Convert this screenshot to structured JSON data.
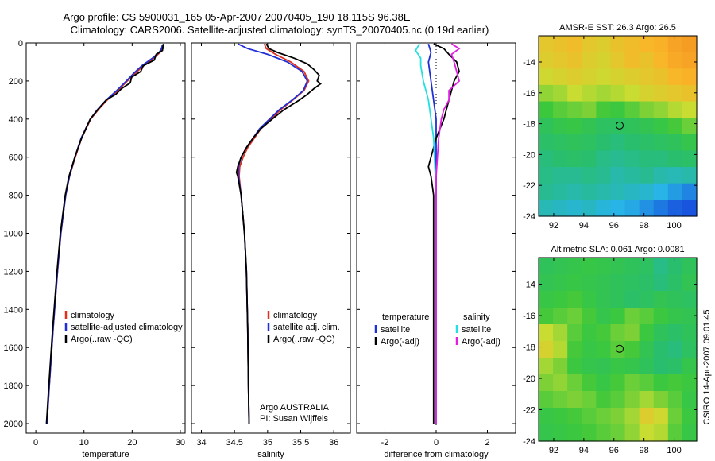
{
  "title_line1": "Argo profile: CS 5900031_165 05-Apr-2007 20070405_190 18.115S 96.38E",
  "title_line2": "Climatology: CARS2006. Satellite-adjusted climatology: synTS_20070405.nc (0.19d earlier)",
  "footer_stamp": "CSIRO 14-Apr-2007 09:01:45",
  "colors": {
    "climatology": "#e0301e",
    "satellite": "#1f2fd6",
    "argo": "#000000",
    "sat_diff_cyan": "#22e0e0",
    "argo_diff_magenta": "#e020e0"
  },
  "chart_data": [
    {
      "type": "line",
      "xlabel": "temperature",
      "ylim": [
        0,
        2050
      ],
      "xlim": [
        -2,
        31
      ],
      "yticks": [
        0,
        200,
        400,
        600,
        800,
        1000,
        1200,
        1400,
        1600,
        1800,
        2000
      ],
      "ytick_labels": [
        "0",
        "200",
        "400",
        "600",
        "800",
        "1000",
        "1200",
        "1400",
        "1600",
        "1800",
        "2000"
      ],
      "xticks": [
        0,
        10,
        20,
        30
      ],
      "xtick_labels": [
        "0",
        "10",
        "20",
        "30"
      ],
      "legend": [
        "climatology",
        "satellite-adjusted climatology",
        "Argo(..raw -QC)"
      ],
      "series": [
        {
          "name": "climatology",
          "depth": [
            10,
            30,
            50,
            80,
            120,
            160,
            200,
            250,
            300,
            350,
            400,
            500,
            600,
            700,
            800,
            1000,
            1200,
            1500,
            1800,
            2000
          ],
          "values": [
            26.6,
            26.4,
            25.8,
            24.5,
            22.4,
            20.6,
            19.0,
            17.0,
            14.8,
            13.0,
            11.4,
            9.5,
            8.2,
            7.0,
            6.2,
            5.2,
            4.5,
            3.6,
            2.8,
            2.3
          ]
        },
        {
          "name": "satellite-adjusted climatology",
          "depth": [
            10,
            30,
            50,
            80,
            120,
            160,
            200,
            250,
            300,
            350,
            400,
            500,
            600,
            700,
            800,
            1000,
            1200,
            1500,
            1800,
            2000
          ],
          "values": [
            26.3,
            26.1,
            25.6,
            24.2,
            22.0,
            20.3,
            18.8,
            16.8,
            14.6,
            12.8,
            11.3,
            9.4,
            8.1,
            7.0,
            6.2,
            5.2,
            4.5,
            3.6,
            2.8,
            2.3
          ]
        },
        {
          "name": "Argo(..raw -QC)",
          "depth": [
            5,
            20,
            40,
            60,
            90,
            120,
            150,
            180,
            210,
            240,
            270,
            300,
            350,
            400,
            450,
            500,
            600,
            700,
            800,
            1000,
            1200,
            1500,
            1800,
            2000
          ],
          "values": [
            26.5,
            26.4,
            26.3,
            25.0,
            24.6,
            22.3,
            21.8,
            19.9,
            19.6,
            17.8,
            16.6,
            14.6,
            12.9,
            11.3,
            10.4,
            9.5,
            8.1,
            6.9,
            6.1,
            5.1,
            4.4,
            3.5,
            2.7,
            2.2
          ]
        }
      ]
    },
    {
      "type": "line",
      "xlabel": "salinity",
      "ylim": [
        0,
        2050
      ],
      "xlim": [
        33.85,
        36.25
      ],
      "xticks": [
        34,
        34.5,
        35,
        35.5,
        36
      ],
      "xtick_labels": [
        "34",
        "34.5",
        "35",
        "35.5",
        "36"
      ],
      "legend": [
        "climatology",
        "satellite adj. clim.",
        "Argo(..raw -QC)"
      ],
      "annotations": [
        "Argo AUSTRALIA",
        "PI: Susan Wijffels"
      ],
      "series": [
        {
          "name": "climatology",
          "depth": [
            5,
            30,
            60,
            100,
            150,
            200,
            250,
            300,
            350,
            400,
            450,
            500,
            550,
            600,
            650,
            700,
            800,
            1000,
            1200,
            1500,
            1800,
            2000
          ],
          "values": [
            34.95,
            34.98,
            35.12,
            35.35,
            35.55,
            35.62,
            35.55,
            35.38,
            35.2,
            35.05,
            34.9,
            34.8,
            34.7,
            34.63,
            34.58,
            34.57,
            34.6,
            34.65,
            34.68,
            34.7,
            34.71,
            34.72
          ]
        },
        {
          "name": "satellite adj. clim.",
          "depth": [
            5,
            30,
            60,
            100,
            150,
            200,
            250,
            300,
            350,
            400,
            450,
            500,
            550,
            600,
            650,
            700,
            800,
            1000,
            1200,
            1500,
            1800,
            2000
          ],
          "values": [
            34.55,
            34.7,
            35.0,
            35.3,
            35.52,
            35.6,
            35.54,
            35.37,
            35.18,
            35.03,
            34.88,
            34.78,
            34.68,
            34.6,
            34.56,
            34.56,
            34.6,
            34.65,
            34.68,
            34.7,
            34.71,
            34.72
          ]
        },
        {
          "name": "Argo(..raw -QC)",
          "depth": [
            5,
            30,
            50,
            80,
            110,
            140,
            170,
            200,
            215,
            240,
            270,
            300,
            350,
            400,
            450,
            500,
            550,
            600,
            650,
            680,
            700,
            800,
            1000,
            1200,
            1500,
            1800,
            2000
          ],
          "values": [
            34.98,
            35.02,
            35.15,
            35.4,
            35.6,
            35.7,
            35.78,
            35.75,
            35.8,
            35.7,
            35.6,
            35.48,
            35.25,
            35.07,
            34.9,
            34.78,
            34.68,
            34.6,
            34.55,
            34.53,
            34.55,
            34.6,
            34.65,
            34.68,
            34.7,
            34.71,
            34.72
          ]
        }
      ]
    },
    {
      "type": "line",
      "xlabel": "difference from climatology",
      "ylim": [
        0,
        2050
      ],
      "xlim": [
        -3.1,
        3.1
      ],
      "xticks": [
        -2,
        0,
        2
      ],
      "xtick_labels": [
        "-2",
        "0",
        "2"
      ],
      "legend_headers": [
        "temperature",
        "salinity"
      ],
      "legend": [
        "satellite",
        "Argo(-adj)",
        "satellite",
        "Argo(-adj)"
      ],
      "series": [
        {
          "name": "temperature satellite",
          "depth": [
            5,
            50,
            100,
            200,
            400,
            700,
            1000,
            1500,
            2000
          ],
          "values": [
            -0.3,
            -0.2,
            -0.3,
            -0.2,
            0.0,
            0.0,
            0.0,
            0.0,
            0.0
          ]
        },
        {
          "name": "temperature Argo(-adj)",
          "depth": [
            5,
            30,
            60,
            100,
            150,
            200,
            300,
            400,
            500,
            600,
            650,
            700,
            800,
            1000,
            1500,
            2000
          ],
          "values": [
            -0.1,
            0.3,
            0.5,
            0.8,
            0.9,
            0.7,
            0.5,
            0.3,
            0.0,
            -0.2,
            -0.3,
            -0.2,
            -0.1,
            -0.1,
            -0.1,
            -0.1
          ]
        },
        {
          "name": "salinity satellite",
          "depth": [
            5,
            40,
            80,
            120,
            200,
            300,
            500,
            800,
            1200,
            2000
          ],
          "values": [
            -0.65,
            -0.8,
            -0.6,
            -0.6,
            -0.5,
            -0.3,
            -0.1,
            0.0,
            0.0,
            0.0
          ]
        },
        {
          "name": "salinity Argo(-adj)",
          "depth": [
            5,
            30,
            60,
            100,
            150,
            200,
            250,
            300,
            350,
            400,
            500,
            600,
            700,
            800,
            1000,
            1500,
            2000
          ],
          "values": [
            0.6,
            0.9,
            0.6,
            0.7,
            0.8,
            0.9,
            0.5,
            0.5,
            0.3,
            0.2,
            0.1,
            0.05,
            0.0,
            0.0,
            0.0,
            0.0,
            0.0
          ]
        }
      ]
    },
    {
      "type": "heatmap",
      "title": "AMSR-E SST: 26.3 Argo: 26.5",
      "xlim": [
        91,
        101.5
      ],
      "ylim": [
        -24,
        -12.3
      ],
      "xticks": [
        92,
        94,
        96,
        98,
        100
      ],
      "xtick_labels": [
        "92",
        "94",
        "96",
        "98",
        "100"
      ],
      "yticks": [
        -14,
        -16,
        -18,
        -20,
        -22,
        -24
      ],
      "ytick_labels": [
        "-14",
        "-16",
        "-18",
        "-20",
        "-22",
        "-24"
      ],
      "marker": {
        "lon": 96.38,
        "lat": -18.115
      },
      "grid": [
        [
          0.78,
          0.8,
          0.82,
          0.78,
          0.76,
          0.8,
          0.82,
          0.84,
          0.86,
          0.9,
          0.92
        ],
        [
          0.76,
          0.78,
          0.8,
          0.76,
          0.74,
          0.78,
          0.82,
          0.8,
          0.84,
          0.88,
          0.9
        ],
        [
          0.72,
          0.74,
          0.76,
          0.74,
          0.72,
          0.74,
          0.76,
          0.78,
          0.8,
          0.84,
          0.86
        ],
        [
          0.64,
          0.66,
          0.7,
          0.68,
          0.66,
          0.68,
          0.7,
          0.74,
          0.76,
          0.78,
          0.8
        ],
        [
          0.55,
          0.58,
          0.6,
          0.62,
          0.56,
          0.54,
          0.58,
          0.62,
          0.64,
          0.68,
          0.7
        ],
        [
          0.46,
          0.5,
          0.52,
          0.48,
          0.44,
          0.44,
          0.46,
          0.48,
          0.52,
          0.56,
          0.6
        ],
        [
          0.42,
          0.44,
          0.46,
          0.44,
          0.4,
          0.38,
          0.4,
          0.42,
          0.44,
          0.46,
          0.5
        ],
        [
          0.38,
          0.4,
          0.42,
          0.4,
          0.36,
          0.34,
          0.36,
          0.38,
          0.38,
          0.4,
          0.42
        ],
        [
          0.36,
          0.34,
          0.34,
          0.36,
          0.34,
          0.3,
          0.32,
          0.34,
          0.3,
          0.28,
          0.3
        ],
        [
          0.34,
          0.32,
          0.3,
          0.32,
          0.3,
          0.28,
          0.26,
          0.24,
          0.2,
          0.16,
          0.12
        ],
        [
          0.28,
          0.26,
          0.24,
          0.26,
          0.22,
          0.2,
          0.18,
          0.14,
          0.1,
          0.06,
          0.04
        ]
      ]
    },
    {
      "type": "heatmap",
      "title": "Altimetric SLA: 0.061 Argo: 0.0081",
      "xlim": [
        91,
        101.5
      ],
      "ylim": [
        -24,
        -12.3
      ],
      "xticks": [
        92,
        94,
        96,
        98,
        100
      ],
      "xtick_labels": [
        "92",
        "94",
        "96",
        "98",
        "100"
      ],
      "yticks": [
        -14,
        -16,
        -18,
        -20,
        -22,
        -24
      ],
      "ytick_labels": [
        "-14",
        "-16",
        "-18",
        "-20",
        "-22",
        "-24"
      ],
      "marker": {
        "lon": 96.38,
        "lat": -18.115
      },
      "grid": [
        [
          0.46,
          0.48,
          0.5,
          0.52,
          0.5,
          0.48,
          0.46,
          0.44,
          0.36,
          0.4,
          0.46
        ],
        [
          0.48,
          0.5,
          0.52,
          0.5,
          0.48,
          0.46,
          0.44,
          0.42,
          0.38,
          0.42,
          0.48
        ],
        [
          0.52,
          0.54,
          0.56,
          0.52,
          0.48,
          0.46,
          0.42,
          0.44,
          0.48,
          0.46,
          0.44
        ],
        [
          0.56,
          0.58,
          0.6,
          0.56,
          0.5,
          0.54,
          0.6,
          0.58,
          0.54,
          0.5,
          0.48
        ],
        [
          0.7,
          0.66,
          0.58,
          0.54,
          0.56,
          0.6,
          0.62,
          0.54,
          0.46,
          0.42,
          0.46
        ],
        [
          0.74,
          0.68,
          0.56,
          0.52,
          0.54,
          0.58,
          0.56,
          0.48,
          0.4,
          0.38,
          0.44
        ],
        [
          0.66,
          0.62,
          0.54,
          0.5,
          0.48,
          0.52,
          0.5,
          0.46,
          0.4,
          0.42,
          0.5
        ],
        [
          0.62,
          0.64,
          0.6,
          0.56,
          0.52,
          0.56,
          0.6,
          0.58,
          0.54,
          0.56,
          0.54
        ],
        [
          0.58,
          0.6,
          0.62,
          0.6,
          0.56,
          0.58,
          0.62,
          0.66,
          0.62,
          0.58,
          0.52
        ],
        [
          0.52,
          0.54,
          0.56,
          0.58,
          0.6,
          0.62,
          0.66,
          0.76,
          0.72,
          0.6,
          0.54
        ],
        [
          0.5,
          0.52,
          0.54,
          0.56,
          0.58,
          0.6,
          0.64,
          0.7,
          0.68,
          0.58,
          0.52
        ]
      ]
    }
  ]
}
